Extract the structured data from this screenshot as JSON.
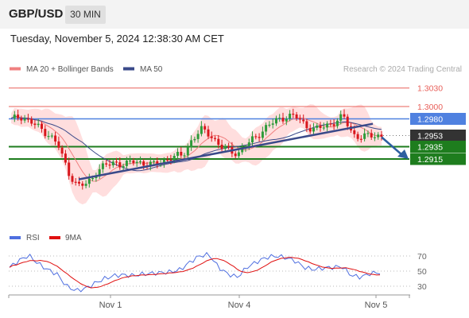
{
  "header": {
    "symbol": "GBP/USD",
    "timeframe": "30 MIN"
  },
  "timestamp": "Tuesday, November 5, 2024 12:38:30 AM CET",
  "legend": {
    "ma_label": "MA 20 + Bollinger Bands",
    "ma50_label": "MA 50",
    "credit": "Research © 2024 Trading Central"
  },
  "rsi_legend": {
    "rsi_label": "RSI",
    "ma_label": "9MA"
  },
  "colors": {
    "bull": "#2e9b3a",
    "bear": "#d9161c",
    "band": "#ffd6d6",
    "ma20": "#f08080",
    "ma50": "#3a4a8a",
    "blue_level": "#4f81e0",
    "red_level": "#e8605a",
    "support": "#1e7d1e",
    "current": "#333333",
    "trend": "#3a4a8a",
    "arrow": "#2e5fa0",
    "rsi": "#4f6fe0",
    "rsi_ma": "#e01010"
  },
  "chart_data": [
    {
      "type": "candlestick",
      "symbol": "GBP/USD",
      "interval": "30 min",
      "x_labels": [
        "Nov 1",
        "Nov 4",
        "Nov 5"
      ],
      "series": [
        {
          "name": "MA 20 + Bollinger Bands"
        },
        {
          "name": "MA 50"
        }
      ],
      "levels": [
        {
          "label": "1.3030",
          "value": 1.303,
          "kind": "resistance"
        },
        {
          "label": "1.3000",
          "value": 1.3,
          "kind": "resistance"
        },
        {
          "label": "1.2980",
          "value": 1.298,
          "kind": "pivot"
        },
        {
          "label": "1.2953",
          "value": 1.2953,
          "kind": "current"
        },
        {
          "label": "1.2935",
          "value": 1.2935,
          "kind": "support"
        },
        {
          "label": "1.2915",
          "value": 1.2915,
          "kind": "support"
        }
      ],
      "path": [
        1.2978,
        1.2985,
        1.2975,
        1.2965,
        1.2955,
        1.2935,
        1.2895,
        1.287,
        1.2875,
        1.2895,
        1.2905,
        1.291,
        1.2905,
        1.2912,
        1.2908,
        1.2905,
        1.2912,
        1.2918,
        1.292,
        1.2945,
        1.2962,
        1.2955,
        1.2935,
        1.2928,
        1.2925,
        1.294,
        1.2955,
        1.2968,
        1.2978,
        1.2985,
        1.2983,
        1.297,
        1.2962,
        1.2968,
        1.2975,
        1.2983,
        1.2955,
        1.295,
        1.2953,
        1.2953
      ],
      "trendline": {
        "from": 1.2882,
        "to": 1.2972
      },
      "forecast_target": 1.2915
    },
    {
      "type": "line",
      "title": "RSI",
      "series": [
        {
          "name": "RSI"
        },
        {
          "name": "9MA"
        }
      ],
      "y_ticks": [
        70,
        50,
        30
      ],
      "ylim": [
        20,
        80
      ],
      "values": [
        55,
        64,
        71,
        60,
        52,
        46,
        30,
        24,
        27,
        34,
        40,
        44,
        45,
        44,
        46,
        47,
        48,
        49,
        52,
        62,
        70,
        72,
        55,
        46,
        42,
        55,
        62,
        68,
        70,
        68,
        64,
        55,
        52,
        54,
        55,
        56,
        44,
        42,
        47,
        48
      ]
    }
  ]
}
